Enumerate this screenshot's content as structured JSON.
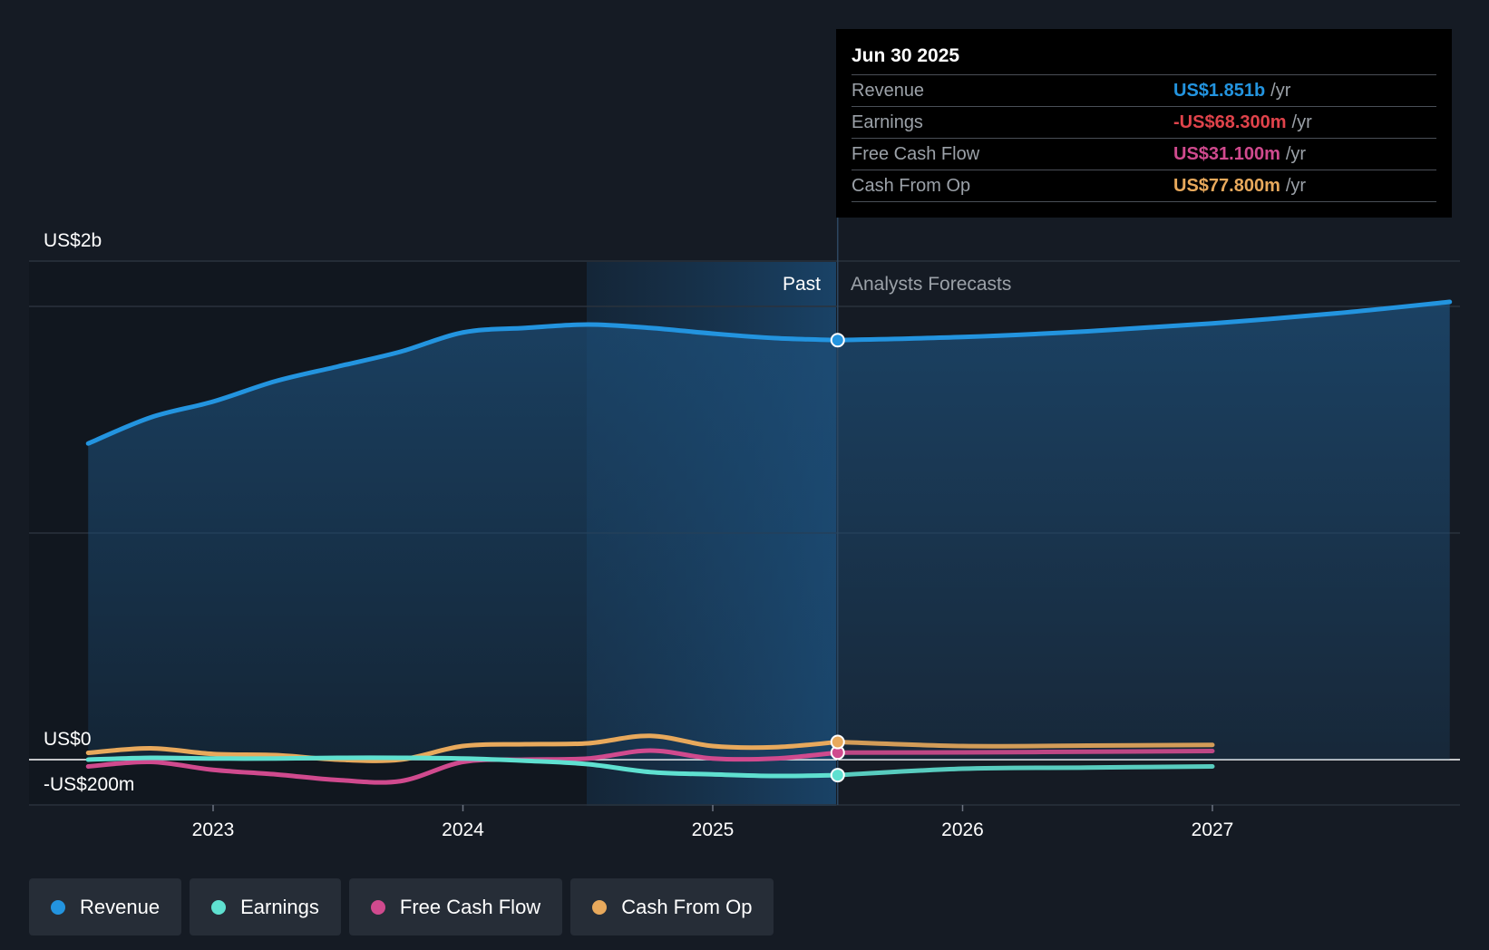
{
  "chart_data": {
    "type": "line",
    "title": "",
    "y_axis_labels": {
      "top": "US$2b",
      "zero": "US$0",
      "negative": "-US$200m"
    },
    "x_ticks": [
      "2023",
      "2024",
      "2025",
      "2026",
      "2027"
    ],
    "ylim": [
      -200,
      2200
    ],
    "divider_labels": {
      "past": "Past",
      "forecast": "Analysts Forecasts"
    },
    "series": [
      {
        "name": "Revenue",
        "color": "#2394df",
        "points": [
          [
            2022.5,
            1395
          ],
          [
            2022.75,
            1510
          ],
          [
            2023.0,
            1580
          ],
          [
            2023.25,
            1670
          ],
          [
            2023.5,
            1735
          ],
          [
            2023.75,
            1800
          ],
          [
            2024.0,
            1885
          ],
          [
            2024.25,
            1905
          ],
          [
            2024.5,
            1920
          ],
          [
            2024.75,
            1905
          ],
          [
            2025.0,
            1880
          ],
          [
            2025.25,
            1860
          ],
          [
            2025.5,
            1851
          ]
        ],
        "forecast": [
          [
            2025.5,
            1851
          ],
          [
            2026.0,
            1865
          ],
          [
            2026.5,
            1890
          ],
          [
            2027.0,
            1925
          ],
          [
            2027.5,
            1970
          ],
          [
            2027.95,
            2020
          ]
        ]
      },
      {
        "name": "Earnings",
        "color": "#5fe0d0",
        "points": [
          [
            2022.5,
            0
          ],
          [
            2022.75,
            8
          ],
          [
            2023.0,
            5
          ],
          [
            2023.25,
            5
          ],
          [
            2023.5,
            8
          ],
          [
            2023.75,
            8
          ],
          [
            2024.0,
            5
          ],
          [
            2024.25,
            -5
          ],
          [
            2024.5,
            -20
          ],
          [
            2024.75,
            -55
          ],
          [
            2025.0,
            -65
          ],
          [
            2025.25,
            -72
          ],
          [
            2025.5,
            -68.3
          ]
        ],
        "forecast": [
          [
            2025.5,
            -68.3
          ],
          [
            2026.0,
            -40
          ],
          [
            2026.5,
            -35
          ],
          [
            2027.0,
            -30
          ]
        ]
      },
      {
        "name": "Free Cash Flow",
        "color": "#d04a8e",
        "points": [
          [
            2022.5,
            -30
          ],
          [
            2022.75,
            -10
          ],
          [
            2023.0,
            -45
          ],
          [
            2023.25,
            -65
          ],
          [
            2023.5,
            -90
          ],
          [
            2023.75,
            -95
          ],
          [
            2024.0,
            -10
          ],
          [
            2024.25,
            0
          ],
          [
            2024.5,
            5
          ],
          [
            2024.75,
            40
          ],
          [
            2025.0,
            5
          ],
          [
            2025.25,
            5
          ],
          [
            2025.5,
            31.1
          ]
        ],
        "forecast": [
          [
            2025.5,
            31.1
          ],
          [
            2026.0,
            32
          ],
          [
            2026.5,
            35
          ],
          [
            2027.0,
            38
          ]
        ]
      },
      {
        "name": "Cash From Op",
        "color": "#e8a95c",
        "points": [
          [
            2022.5,
            30
          ],
          [
            2022.75,
            50
          ],
          [
            2023.0,
            25
          ],
          [
            2023.25,
            20
          ],
          [
            2023.5,
            0
          ],
          [
            2023.75,
            0
          ],
          [
            2024.0,
            60
          ],
          [
            2024.25,
            68
          ],
          [
            2024.5,
            72
          ],
          [
            2024.75,
            105
          ],
          [
            2025.0,
            60
          ],
          [
            2025.25,
            55
          ],
          [
            2025.5,
            77.8
          ]
        ],
        "forecast": [
          [
            2025.5,
            77.8
          ],
          [
            2026.0,
            60
          ],
          [
            2026.5,
            62
          ],
          [
            2027.0,
            65
          ]
        ]
      }
    ]
  },
  "tooltip": {
    "date": "Jun 30 2025",
    "unit": "/yr",
    "rows": [
      {
        "label": "Revenue",
        "value": "US$1.851b",
        "color": "#2394df"
      },
      {
        "label": "Earnings",
        "value": "-US$68.300m",
        "color": "#e0434b"
      },
      {
        "label": "Free Cash Flow",
        "value": "US$31.100m",
        "color": "#d04a8e"
      },
      {
        "label": "Cash From Op",
        "value": "US$77.800m",
        "color": "#e8a95c"
      }
    ]
  },
  "legend": [
    {
      "label": "Revenue",
      "color": "#2394df"
    },
    {
      "label": "Earnings",
      "color": "#5fe0d0"
    },
    {
      "label": "Free Cash Flow",
      "color": "#d04a8e"
    },
    {
      "label": "Cash From Op",
      "color": "#e8a95c"
    }
  ]
}
